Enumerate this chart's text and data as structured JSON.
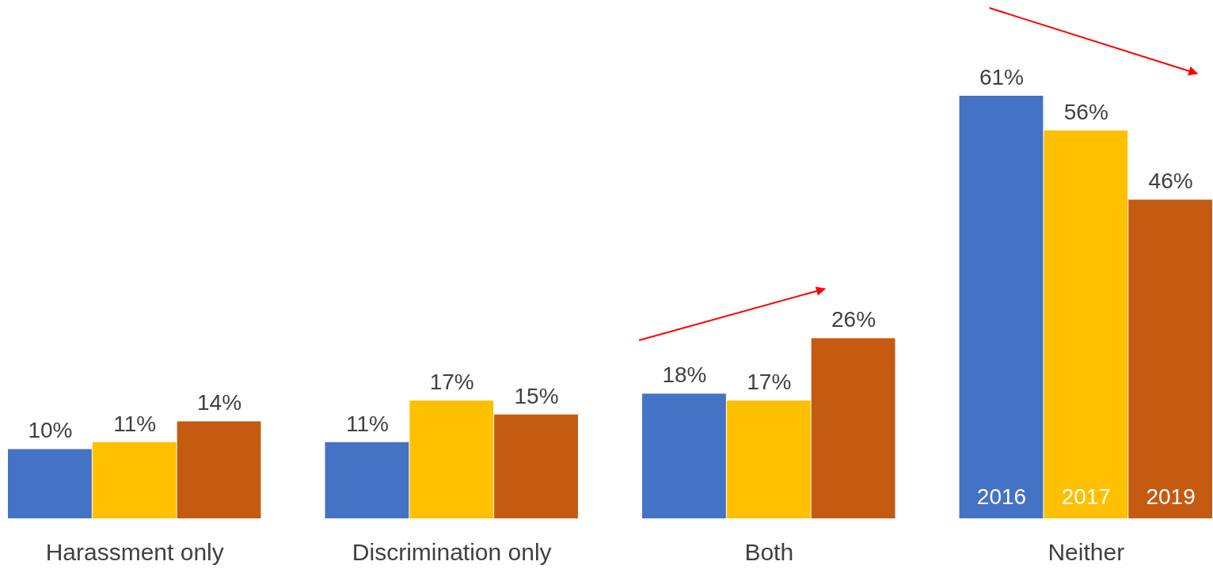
{
  "chart_data": {
    "type": "bar",
    "categories": [
      "Harassment only",
      "Discrimination only",
      "Both",
      "Neither"
    ],
    "series": [
      {
        "name": "2016",
        "color": "#4472c4",
        "values": [
          10,
          11,
          18,
          61
        ],
        "value_labels": [
          "10%",
          "11%",
          "18%",
          "61%"
        ]
      },
      {
        "name": "2017",
        "color": "#ffc000",
        "values": [
          11,
          17,
          17,
          56
        ],
        "value_labels": [
          "11%",
          "17%",
          "17%",
          "56%"
        ]
      },
      {
        "name": "2019",
        "color": "#c55a11",
        "values": [
          14,
          15,
          26,
          46
        ],
        "value_labels": [
          "14%",
          "15%",
          "26%",
          "46%"
        ]
      }
    ]
  }
}
